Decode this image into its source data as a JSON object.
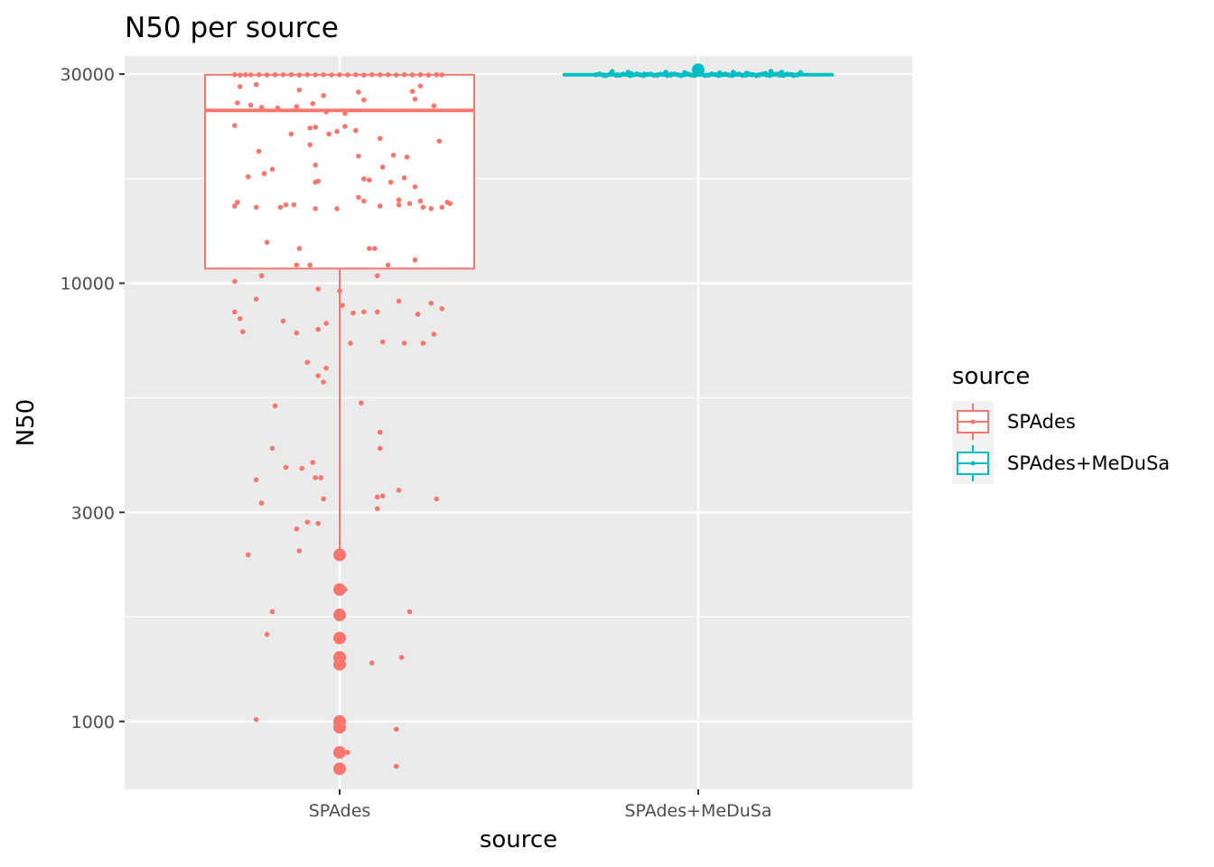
{
  "chart_data": {
    "type": "box",
    "title": "N50 per source",
    "xlabel": "source",
    "ylabel": "N50",
    "y_scale": "log10",
    "ylim": [
      700,
      33000
    ],
    "y_ticks": [
      "1000",
      "3000",
      "10000",
      "30000"
    ],
    "categories": [
      "SPAdes",
      "SPAdes+MeDuSa"
    ],
    "grid": true,
    "legend": {
      "title": "source",
      "position": "right",
      "entries": [
        "SPAdes",
        "SPAdes+MeDuSa"
      ]
    },
    "colors": {
      "SPAdes": "#F8766D",
      "SPAdes+MeDuSa": "#00BFC4"
    },
    "boxes": [
      {
        "category": "SPAdes",
        "lower_whisker": 2400,
        "q1": 10800,
        "median": 24800,
        "q3": 29900,
        "upper_whisker": 29900,
        "outliers": [
          2400,
          2000,
          1750,
          1550,
          1400,
          1350,
          1000,
          970,
          850,
          780
        ]
      },
      {
        "category": "SPAdes+MeDuSa",
        "lower_whisker": 29600,
        "q1": 29800,
        "median": 29900,
        "q3": 30000,
        "upper_whisker": 30300,
        "outliers": [
          30700
        ]
      }
    ],
    "jitter": [
      {
        "category": "SPAdes",
        "offset": -0.39,
        "y": 29900
      },
      {
        "category": "SPAdes",
        "offset": -0.37,
        "y": 29850
      },
      {
        "category": "SPAdes",
        "offset": -0.35,
        "y": 29900
      },
      {
        "category": "SPAdes",
        "offset": -0.33,
        "y": 29880
      },
      {
        "category": "SPAdes",
        "offset": -0.3,
        "y": 29900
      },
      {
        "category": "SPAdes",
        "offset": -0.27,
        "y": 29870
      },
      {
        "category": "SPAdes",
        "offset": -0.24,
        "y": 29900
      },
      {
        "category": "SPAdes",
        "offset": -0.21,
        "y": 29880
      },
      {
        "category": "SPAdes",
        "offset": -0.18,
        "y": 29900
      },
      {
        "category": "SPAdes",
        "offset": -0.15,
        "y": 29850
      },
      {
        "category": "SPAdes",
        "offset": -0.12,
        "y": 29900
      },
      {
        "category": "SPAdes",
        "offset": -0.09,
        "y": 29880
      },
      {
        "category": "SPAdes",
        "offset": -0.06,
        "y": 29900
      },
      {
        "category": "SPAdes",
        "offset": -0.03,
        "y": 29870
      },
      {
        "category": "SPAdes",
        "offset": 0.0,
        "y": 29900
      },
      {
        "category": "SPAdes",
        "offset": 0.03,
        "y": 29880
      },
      {
        "category": "SPAdes",
        "offset": 0.06,
        "y": 29900
      },
      {
        "category": "SPAdes",
        "offset": 0.09,
        "y": 29850
      },
      {
        "category": "SPAdes",
        "offset": 0.12,
        "y": 29900
      },
      {
        "category": "SPAdes",
        "offset": 0.15,
        "y": 29880
      },
      {
        "category": "SPAdes",
        "offset": 0.18,
        "y": 29900
      },
      {
        "category": "SPAdes",
        "offset": 0.21,
        "y": 29870
      },
      {
        "category": "SPAdes",
        "offset": 0.24,
        "y": 29900
      },
      {
        "category": "SPAdes",
        "offset": 0.27,
        "y": 29880
      },
      {
        "category": "SPAdes",
        "offset": 0.3,
        "y": 29900
      },
      {
        "category": "SPAdes",
        "offset": 0.33,
        "y": 29850
      },
      {
        "category": "SPAdes",
        "offset": 0.36,
        "y": 29900
      },
      {
        "category": "SPAdes",
        "offset": 0.38,
        "y": 29880
      },
      {
        "category": "SPAdes",
        "offset": -0.38,
        "y": 25800
      },
      {
        "category": "SPAdes",
        "offset": -0.33,
        "y": 25500
      },
      {
        "category": "SPAdes",
        "offset": -0.29,
        "y": 25200
      },
      {
        "category": "SPAdes",
        "offset": -0.23,
        "y": 25100
      },
      {
        "category": "SPAdes",
        "offset": -0.16,
        "y": 25300
      },
      {
        "category": "SPAdes",
        "offset": -0.1,
        "y": 25700
      },
      {
        "category": "SPAdes",
        "offset": -0.05,
        "y": 24600
      },
      {
        "category": "SPAdes",
        "offset": 0.02,
        "y": 24400
      },
      {
        "category": "SPAdes",
        "offset": 0.09,
        "y": 26200
      },
      {
        "category": "SPAdes",
        "offset": 0.28,
        "y": 26300
      },
      {
        "category": "SPAdes",
        "offset": 0.35,
        "y": 25400
      },
      {
        "category": "SPAdes",
        "offset": -0.37,
        "y": 28100
      },
      {
        "category": "SPAdes",
        "offset": -0.31,
        "y": 28400
      },
      {
        "category": "SPAdes",
        "offset": -0.15,
        "y": 27600
      },
      {
        "category": "SPAdes",
        "offset": -0.06,
        "y": 26800
      },
      {
        "category": "SPAdes",
        "offset": 0.07,
        "y": 27300
      },
      {
        "category": "SPAdes",
        "offset": 0.27,
        "y": 27400
      },
      {
        "category": "SPAdes",
        "offset": 0.3,
        "y": 28200
      },
      {
        "category": "SPAdes",
        "offset": -0.39,
        "y": 22900
      },
      {
        "category": "SPAdes",
        "offset": -0.18,
        "y": 21900
      },
      {
        "category": "SPAdes",
        "offset": -0.11,
        "y": 22600
      },
      {
        "category": "SPAdes",
        "offset": -0.09,
        "y": 22700
      },
      {
        "category": "SPAdes",
        "offset": -0.04,
        "y": 21900
      },
      {
        "category": "SPAdes",
        "offset": -0.01,
        "y": 22200
      },
      {
        "category": "SPAdes",
        "offset": 0.02,
        "y": 22800
      },
      {
        "category": "SPAdes",
        "offset": 0.06,
        "y": 22300
      },
      {
        "category": "SPAdes",
        "offset": 0.15,
        "y": 21400
      },
      {
        "category": "SPAdes",
        "offset": 0.37,
        "y": 21100
      },
      {
        "category": "SPAdes",
        "offset": -0.3,
        "y": 20000
      },
      {
        "category": "SPAdes",
        "offset": -0.11,
        "y": 20700
      },
      {
        "category": "SPAdes",
        "offset": 0.07,
        "y": 19500
      },
      {
        "category": "SPAdes",
        "offset": 0.2,
        "y": 19600
      },
      {
        "category": "SPAdes",
        "offset": 0.25,
        "y": 19400
      },
      {
        "category": "SPAdes",
        "offset": -0.25,
        "y": 18200
      },
      {
        "category": "SPAdes",
        "offset": -0.09,
        "y": 18600
      },
      {
        "category": "SPAdes",
        "offset": 0.16,
        "y": 18400
      },
      {
        "category": "SPAdes",
        "offset": -0.34,
        "y": 17500
      },
      {
        "category": "SPAdes",
        "offset": -0.28,
        "y": 17800
      },
      {
        "category": "SPAdes",
        "offset": -0.08,
        "y": 17100
      },
      {
        "category": "SPAdes",
        "offset": -0.09,
        "y": 17000
      },
      {
        "category": "SPAdes",
        "offset": 0.09,
        "y": 17300
      },
      {
        "category": "SPAdes",
        "offset": 0.11,
        "y": 17200
      },
      {
        "category": "SPAdes",
        "offset": 0.19,
        "y": 17000
      },
      {
        "category": "SPAdes",
        "offset": 0.24,
        "y": 17400
      },
      {
        "category": "SPAdes",
        "offset": 0.28,
        "y": 16600
      },
      {
        "category": "SPAdes",
        "offset": -0.38,
        "y": 15300
      },
      {
        "category": "SPAdes",
        "offset": -0.39,
        "y": 15000
      },
      {
        "category": "SPAdes",
        "offset": -0.31,
        "y": 14900
      },
      {
        "category": "SPAdes",
        "offset": -0.22,
        "y": 14900
      },
      {
        "category": "SPAdes",
        "offset": -0.2,
        "y": 15100
      },
      {
        "category": "SPAdes",
        "offset": -0.17,
        "y": 15100
      },
      {
        "category": "SPAdes",
        "offset": -0.09,
        "y": 14800
      },
      {
        "category": "SPAdes",
        "offset": -0.01,
        "y": 14800
      },
      {
        "category": "SPAdes",
        "offset": 0.07,
        "y": 15700
      },
      {
        "category": "SPAdes",
        "offset": 0.09,
        "y": 15400
      },
      {
        "category": "SPAdes",
        "offset": 0.15,
        "y": 15000
      },
      {
        "category": "SPAdes",
        "offset": 0.22,
        "y": 15100
      },
      {
        "category": "SPAdes",
        "offset": 0.26,
        "y": 15200
      },
      {
        "category": "SPAdes",
        "offset": 0.3,
        "y": 15400
      },
      {
        "category": "SPAdes",
        "offset": 0.31,
        "y": 14900
      },
      {
        "category": "SPAdes",
        "offset": 0.34,
        "y": 14800
      },
      {
        "category": "SPAdes",
        "offset": 0.38,
        "y": 14900
      },
      {
        "category": "SPAdes",
        "offset": 0.4,
        "y": 15300
      },
      {
        "category": "SPAdes",
        "offset": 0.41,
        "y": 15200
      },
      {
        "category": "SPAdes",
        "offset": 0.22,
        "y": 15500
      },
      {
        "category": "SPAdes",
        "offset": -0.27,
        "y": 12400
      },
      {
        "category": "SPAdes",
        "offset": -0.15,
        "y": 12000
      },
      {
        "category": "SPAdes",
        "offset": 0.11,
        "y": 12000
      },
      {
        "category": "SPAdes",
        "offset": 0.13,
        "y": 12000
      },
      {
        "category": "SPAdes",
        "offset": -0.16,
        "y": 11000
      },
      {
        "category": "SPAdes",
        "offset": -0.11,
        "y": 11000
      },
      {
        "category": "SPAdes",
        "offset": 0.18,
        "y": 11000
      },
      {
        "category": "SPAdes",
        "offset": 0.28,
        "y": 11300
      },
      {
        "category": "SPAdes",
        "offset": -0.29,
        "y": 10400
      },
      {
        "category": "SPAdes",
        "offset": -0.39,
        "y": 10100
      },
      {
        "category": "SPAdes",
        "offset": 0.14,
        "y": 10400
      },
      {
        "category": "SPAdes",
        "offset": -0.08,
        "y": 9700
      },
      {
        "category": "SPAdes",
        "offset": 0.0,
        "y": 9600
      },
      {
        "category": "SPAdes",
        "offset": -0.31,
        "y": 9200
      },
      {
        "category": "SPAdes",
        "offset": 0.22,
        "y": 9100
      },
      {
        "category": "SPAdes",
        "offset": 0.34,
        "y": 9000
      },
      {
        "category": "SPAdes",
        "offset": 0.01,
        "y": 8900
      },
      {
        "category": "SPAdes",
        "offset": -0.39,
        "y": 8600
      },
      {
        "category": "SPAdes",
        "offset": 0.05,
        "y": 8550
      },
      {
        "category": "SPAdes",
        "offset": 0.09,
        "y": 8600
      },
      {
        "category": "SPAdes",
        "offset": 0.14,
        "y": 8600
      },
      {
        "category": "SPAdes",
        "offset": 0.29,
        "y": 8500
      },
      {
        "category": "SPAdes",
        "offset": 0.38,
        "y": 8750
      },
      {
        "category": "SPAdes",
        "offset": -0.37,
        "y": 8300
      },
      {
        "category": "SPAdes",
        "offset": -0.21,
        "y": 8200
      },
      {
        "category": "SPAdes",
        "offset": -0.05,
        "y": 8100
      },
      {
        "category": "SPAdes",
        "offset": -0.36,
        "y": 7750
      },
      {
        "category": "SPAdes",
        "offset": -0.16,
        "y": 7700
      },
      {
        "category": "SPAdes",
        "offset": -0.08,
        "y": 7850
      },
      {
        "category": "SPAdes",
        "offset": 0.04,
        "y": 7300
      },
      {
        "category": "SPAdes",
        "offset": 0.16,
        "y": 7350
      },
      {
        "category": "SPAdes",
        "offset": 0.24,
        "y": 7300
      },
      {
        "category": "SPAdes",
        "offset": 0.31,
        "y": 7300
      },
      {
        "category": "SPAdes",
        "offset": 0.35,
        "y": 7650
      },
      {
        "category": "SPAdes",
        "offset": -0.12,
        "y": 6600
      },
      {
        "category": "SPAdes",
        "offset": -0.05,
        "y": 6400
      },
      {
        "category": "SPAdes",
        "offset": -0.08,
        "y": 6150
      },
      {
        "category": "SPAdes",
        "offset": -0.06,
        "y": 5950
      },
      {
        "category": "SPAdes",
        "offset": 0.08,
        "y": 5330
      },
      {
        "category": "SPAdes",
        "offset": -0.24,
        "y": 5250
      },
      {
        "category": "SPAdes",
        "offset": 0.15,
        "y": 4570
      },
      {
        "category": "SPAdes",
        "offset": -0.25,
        "y": 4200
      },
      {
        "category": "SPAdes",
        "offset": 0.15,
        "y": 4200
      },
      {
        "category": "SPAdes",
        "offset": -0.1,
        "y": 3900
      },
      {
        "category": "SPAdes",
        "offset": -0.2,
        "y": 3800
      },
      {
        "category": "SPAdes",
        "offset": -0.14,
        "y": 3780
      },
      {
        "category": "SPAdes",
        "offset": -0.09,
        "y": 3600
      },
      {
        "category": "SPAdes",
        "offset": -0.07,
        "y": 3600
      },
      {
        "category": "SPAdes",
        "offset": -0.31,
        "y": 3560
      },
      {
        "category": "SPAdes",
        "offset": 0.22,
        "y": 3370
      },
      {
        "category": "SPAdes",
        "offset": 0.16,
        "y": 3270
      },
      {
        "category": "SPAdes",
        "offset": 0.14,
        "y": 3250
      },
      {
        "category": "SPAdes",
        "offset": -0.06,
        "y": 3220
      },
      {
        "category": "SPAdes",
        "offset": 0.36,
        "y": 3220
      },
      {
        "category": "SPAdes",
        "offset": -0.29,
        "y": 3150
      },
      {
        "category": "SPAdes",
        "offset": 0.14,
        "y": 3060
      },
      {
        "category": "SPAdes",
        "offset": -0.12,
        "y": 2850
      },
      {
        "category": "SPAdes",
        "offset": -0.08,
        "y": 2830
      },
      {
        "category": "SPAdes",
        "offset": -0.16,
        "y": 2750
      },
      {
        "category": "SPAdes",
        "offset": -0.15,
        "y": 2450
      },
      {
        "category": "SPAdes",
        "offset": -0.34,
        "y": 2400
      },
      {
        "category": "SPAdes",
        "offset": 0.02,
        "y": 2000
      },
      {
        "category": "SPAdes",
        "offset": -0.25,
        "y": 1780
      },
      {
        "category": "SPAdes",
        "offset": 0.26,
        "y": 1780
      },
      {
        "category": "SPAdes",
        "offset": -0.27,
        "y": 1580
      },
      {
        "category": "SPAdes",
        "offset": 0.23,
        "y": 1400
      },
      {
        "category": "SPAdes",
        "offset": 0.12,
        "y": 1360
      },
      {
        "category": "SPAdes",
        "offset": -0.31,
        "y": 1010
      },
      {
        "category": "SPAdes",
        "offset": 0.21,
        "y": 960
      },
      {
        "category": "SPAdes",
        "offset": 0.03,
        "y": 850
      },
      {
        "category": "SPAdes",
        "offset": 0.21,
        "y": 790
      },
      {
        "category": "SPAdes+MeDuSa",
        "offset": -0.35,
        "y": 29800
      },
      {
        "category": "SPAdes+MeDuSa",
        "offset": -0.3,
        "y": 29900
      },
      {
        "category": "SPAdes+MeDuSa",
        "offset": -0.25,
        "y": 30100
      },
      {
        "category": "SPAdes+MeDuSa",
        "offset": -0.2,
        "y": 30000
      },
      {
        "category": "SPAdes+MeDuSa",
        "offset": -0.15,
        "y": 29900
      },
      {
        "category": "SPAdes+MeDuSa",
        "offset": -0.1,
        "y": 30000
      },
      {
        "category": "SPAdes+MeDuSa",
        "offset": -0.05,
        "y": 30050
      },
      {
        "category": "SPAdes+MeDuSa",
        "offset": 0.05,
        "y": 30000
      },
      {
        "category": "SPAdes+MeDuSa",
        "offset": 0.1,
        "y": 29950
      },
      {
        "category": "SPAdes+MeDuSa",
        "offset": 0.15,
        "y": 30000
      },
      {
        "category": "SPAdes+MeDuSa",
        "offset": 0.2,
        "y": 29900
      },
      {
        "category": "SPAdes+MeDuSa",
        "offset": 0.25,
        "y": 30100
      },
      {
        "category": "SPAdes+MeDuSa",
        "offset": 0.3,
        "y": 30000
      },
      {
        "category": "SPAdes+MeDuSa",
        "offset": 0.35,
        "y": 29900
      },
      {
        "category": "SPAdes+MeDuSa",
        "offset": -0.32,
        "y": 30400
      },
      {
        "category": "SPAdes+MeDuSa",
        "offset": -0.26,
        "y": 30300
      },
      {
        "category": "SPAdes+MeDuSa",
        "offset": -0.12,
        "y": 30300
      },
      {
        "category": "SPAdes+MeDuSa",
        "offset": 0.13,
        "y": 30300
      },
      {
        "category": "SPAdes+MeDuSa",
        "offset": 0.27,
        "y": 30450
      },
      {
        "category": "SPAdes+MeDuSa",
        "offset": 0.31,
        "y": 30300
      },
      {
        "category": "SPAdes+MeDuSa",
        "offset": 0.38,
        "y": 30250
      },
      {
        "category": "SPAdes+MeDuSa",
        "offset": 0.08,
        "y": 30200
      },
      {
        "category": "SPAdes+MeDuSa",
        "offset": -0.05,
        "y": 30250
      },
      {
        "category": "SPAdes+MeDuSa",
        "offset": 0.18,
        "y": 30150
      }
    ]
  }
}
